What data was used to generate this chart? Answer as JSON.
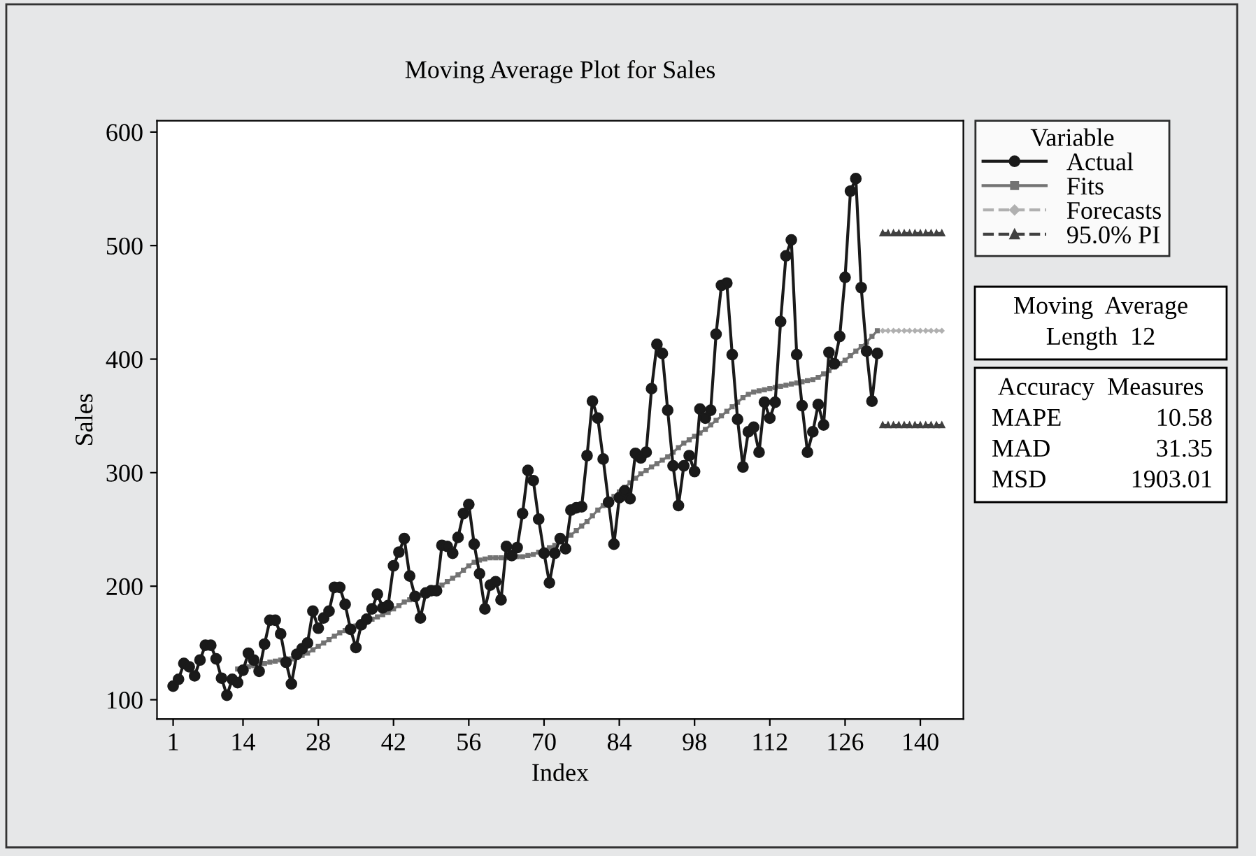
{
  "chart_data": {
    "type": "line",
    "title": "Moving Average Plot for Sales",
    "xlabel": "Index",
    "ylabel": "Sales",
    "legend_title": "Variable",
    "xlim": [
      -2,
      148
    ],
    "xticks": [
      1,
      14,
      28,
      42,
      56,
      70,
      84,
      98,
      112,
      126,
      140
    ],
    "ylim": [
      83,
      610
    ],
    "yticks": [
      100,
      200,
      300,
      400,
      500,
      600
    ],
    "grid": false,
    "legend": "right",
    "series": [
      {
        "name": "Actual",
        "color": "#1a1a1a",
        "marker": "circle",
        "line_style": "solid",
        "x": [
          1,
          2,
          3,
          4,
          5,
          6,
          7,
          8,
          9,
          10,
          11,
          12,
          13,
          14,
          15,
          16,
          17,
          18,
          19,
          20,
          21,
          22,
          23,
          24,
          25,
          26,
          27,
          28,
          29,
          30,
          31,
          32,
          33,
          34,
          35,
          36,
          37,
          38,
          39,
          40,
          41,
          42,
          43,
          44,
          45,
          46,
          47,
          48,
          49,
          50,
          51,
          52,
          53,
          54,
          55,
          56,
          57,
          58,
          59,
          60,
          61,
          62,
          63,
          64,
          65,
          66,
          67,
          68,
          69,
          70,
          71,
          72,
          73,
          74,
          75,
          76,
          77,
          78,
          79,
          80,
          81,
          82,
          83,
          84,
          85,
          86,
          87,
          88,
          89,
          90,
          91,
          92,
          93,
          94,
          95,
          96,
          97,
          98,
          99,
          100,
          101,
          102,
          103,
          104,
          105,
          106,
          107,
          108,
          109,
          110,
          111,
          112,
          113,
          114,
          115,
          116,
          117,
          118,
          119,
          120,
          121,
          122,
          123,
          124,
          125,
          126,
          127,
          128,
          129,
          130,
          131,
          132
        ],
        "values": [
          112,
          118,
          132,
          129,
          121,
          135,
          148,
          148,
          136,
          119,
          104,
          118,
          115,
          126,
          141,
          135,
          125,
          149,
          170,
          170,
          158,
          133,
          114,
          140,
          145,
          150,
          178,
          163,
          172,
          178,
          199,
          199,
          184,
          162,
          146,
          166,
          171,
          180,
          193,
          181,
          183,
          218,
          230,
          242,
          209,
          191,
          172,
          194,
          196,
          196,
          236,
          235,
          229,
          243,
          264,
          272,
          237,
          211,
          180,
          201,
          204,
          188,
          235,
          227,
          234,
          264,
          302,
          293,
          259,
          229,
          203,
          229,
          242,
          233,
          267,
          269,
          270,
          315,
          363,
          348,
          312,
          274,
          237,
          278,
          284,
          277,
          317,
          313,
          318,
          374,
          413,
          405,
          355,
          306,
          271,
          306,
          315,
          301,
          356,
          348,
          355,
          422,
          465,
          467,
          404,
          347,
          305,
          336,
          340,
          318,
          362,
          348,
          362,
          433,
          491,
          505,
          404,
          359,
          318,
          336,
          360,
          342,
          406,
          396,
          420,
          472,
          548,
          559,
          463,
          407,
          363,
          405
        ]
      },
      {
        "name": "Fits",
        "color": "#737373",
        "marker": "square",
        "line_style": "solid",
        "x": [
          13,
          14,
          15,
          16,
          17,
          18,
          19,
          20,
          21,
          22,
          23,
          24,
          25,
          26,
          27,
          28,
          29,
          30,
          31,
          32,
          33,
          34,
          35,
          36,
          37,
          38,
          39,
          40,
          41,
          42,
          43,
          44,
          45,
          46,
          47,
          48,
          49,
          50,
          51,
          52,
          53,
          54,
          55,
          56,
          57,
          58,
          59,
          60,
          61,
          62,
          63,
          64,
          65,
          66,
          67,
          68,
          69,
          70,
          71,
          72,
          73,
          74,
          75,
          76,
          77,
          78,
          79,
          80,
          81,
          82,
          83,
          84,
          85,
          86,
          87,
          88,
          89,
          90,
          91,
          92,
          93,
          94,
          95,
          96,
          97,
          98,
          99,
          100,
          101,
          102,
          103,
          104,
          105,
          106,
          107,
          108,
          109,
          110,
          111,
          112,
          113,
          114,
          115,
          116,
          117,
          118,
          119,
          120,
          121,
          122,
          123,
          124,
          125,
          126,
          127,
          128,
          129,
          130,
          131,
          132
        ],
        "values": [
          127,
          128,
          129,
          130,
          131,
          132,
          133,
          134,
          135,
          136,
          136,
          137,
          139,
          141,
          144,
          147,
          150,
          153,
          156,
          159,
          161,
          163,
          165,
          167,
          169,
          171,
          173,
          175,
          177,
          180,
          183,
          186,
          188,
          190,
          192,
          194,
          196,
          198,
          201,
          204,
          207,
          210,
          214,
          218,
          221,
          223,
          224,
          225,
          225,
          225,
          225,
          225,
          226,
          226,
          227,
          228,
          230,
          232,
          234,
          236,
          239,
          242,
          245,
          249,
          253,
          257,
          262,
          267,
          271,
          275,
          279,
          283,
          287,
          291,
          295,
          299,
          302,
          305,
          308,
          311,
          314,
          318,
          322,
          326,
          329,
          332,
          335,
          338,
          342,
          346,
          350,
          354,
          358,
          362,
          366,
          369,
          371,
          372,
          373,
          374,
          375,
          376,
          377,
          378,
          379,
          380,
          381,
          382,
          384,
          387,
          390,
          393,
          396,
          399,
          403,
          407,
          411,
          415,
          420,
          425
        ]
      },
      {
        "name": "Forecasts",
        "color": "#b0b0b0",
        "marker": "diamond",
        "line_style": "dashed",
        "x": [
          133,
          134,
          135,
          136,
          137,
          138,
          139,
          140,
          141,
          142,
          143,
          144
        ],
        "values": [
          425,
          425,
          425,
          425,
          425,
          425,
          425,
          425,
          425,
          425,
          425,
          425
        ]
      },
      {
        "name": "95.0% PI",
        "color": "#404040",
        "marker": "triangle",
        "line_style": "dashed",
        "x": [
          133,
          134,
          135,
          136,
          137,
          138,
          139,
          140,
          141,
          142,
          143,
          144
        ],
        "values": [
          511,
          511,
          511,
          511,
          511,
          511,
          511,
          511,
          511,
          511,
          511,
          511
        ]
      },
      {
        "color": "#404040",
        "marker": "triangle",
        "line_style": "dashed",
        "x": [
          133,
          134,
          135,
          136,
          137,
          138,
          139,
          140,
          141,
          142,
          143,
          144
        ],
        "values": [
          342,
          342,
          342,
          342,
          342,
          342,
          342,
          342,
          342,
          342,
          342,
          342
        ]
      }
    ],
    "annotations": [
      "Moving\tAverage\nLength\t12",
      "Accuracy\tMeasures\nMAPE\t10.58\nMAD\t31.35\nMSD\t1903.01"
    ]
  }
}
